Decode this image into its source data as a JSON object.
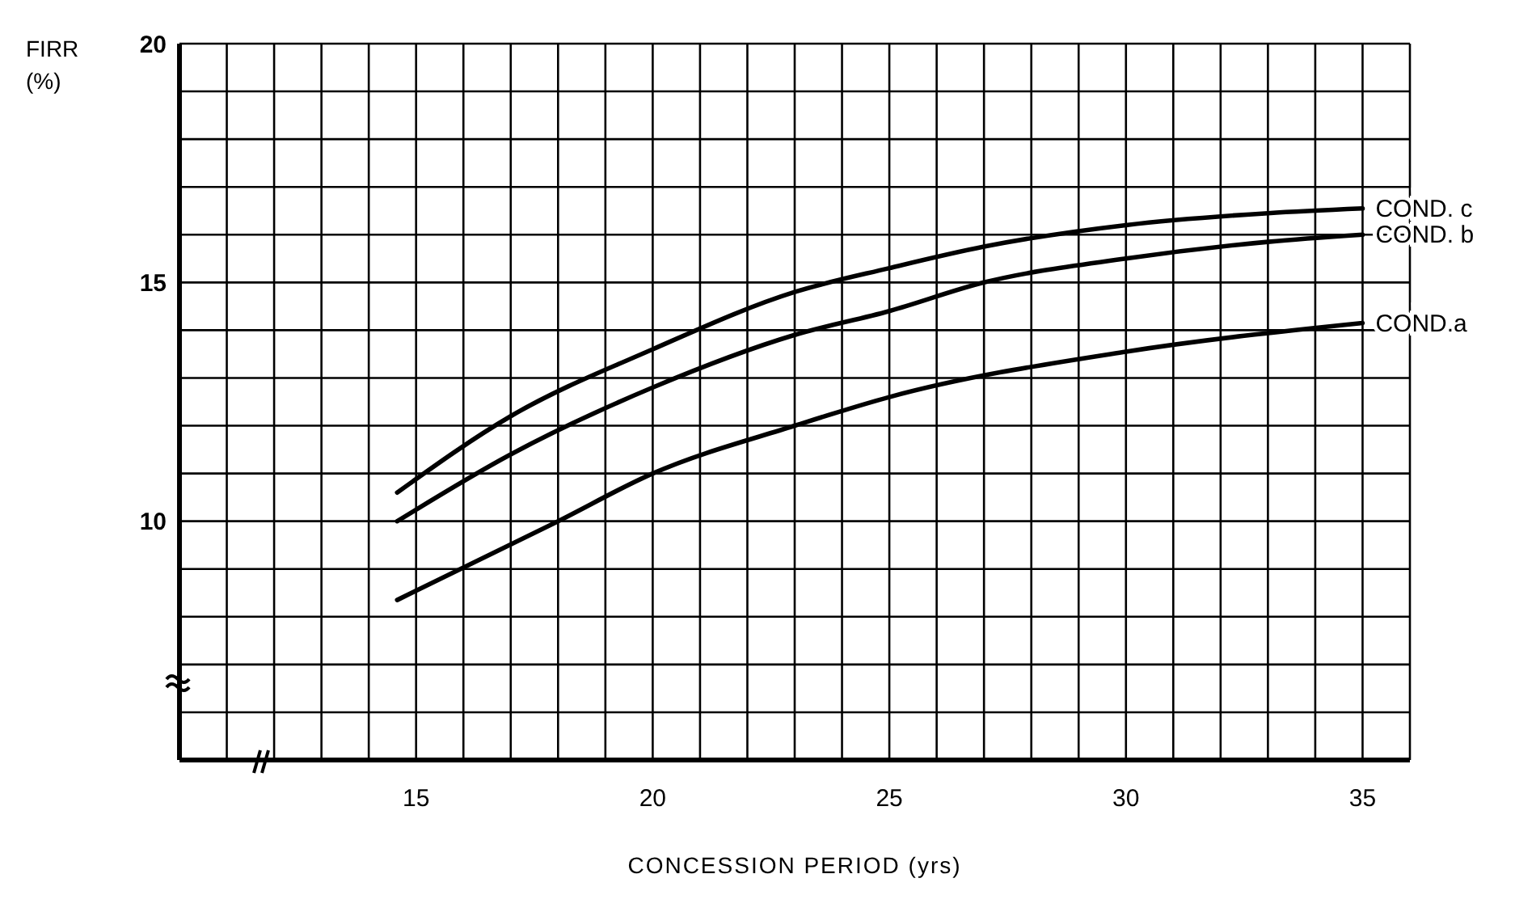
{
  "chart_data": {
    "type": "line",
    "xlabel": "CONCESSION PERIOD (yrs)",
    "ylabel": "FIRR (%)",
    "xlim": [
      10,
      36
    ],
    "ylim": [
      5,
      20
    ],
    "xticks": [
      {
        "value": 10,
        "label": null
      },
      {
        "value": 11,
        "label": null
      },
      {
        "value": 12,
        "label": null
      },
      {
        "value": 13,
        "label": null
      },
      {
        "value": 14,
        "label": null
      },
      15,
      {
        "value": 16,
        "label": null
      },
      {
        "value": 17,
        "label": null
      },
      {
        "value": 18,
        "label": null
      },
      {
        "value": 19,
        "label": null
      },
      20,
      {
        "value": 21,
        "label": null
      },
      {
        "value": 22,
        "label": null
      },
      {
        "value": 23,
        "label": null
      },
      {
        "value": 24,
        "label": null
      },
      25,
      {
        "value": 26,
        "label": null
      },
      {
        "value": 27,
        "label": null
      },
      {
        "value": 28,
        "label": null
      },
      {
        "value": 29,
        "label": null
      },
      30,
      {
        "value": 31,
        "label": null
      },
      {
        "value": 32,
        "label": null
      },
      {
        "value": 33,
        "label": null
      },
      {
        "value": 34,
        "label": null
      },
      35,
      {
        "value": 36,
        "label": null
      }
    ],
    "yticks": [
      {
        "value": 5,
        "label": null
      },
      {
        "value": 6,
        "label": null
      },
      {
        "value": 7,
        "label": null
      },
      {
        "value": 8,
        "label": null
      },
      {
        "value": 9,
        "label": null
      },
      10,
      {
        "value": 11,
        "label": null
      },
      {
        "value": 12,
        "label": null
      },
      {
        "value": 13,
        "label": null
      },
      {
        "value": 14,
        "label": null
      },
      15,
      {
        "value": 16,
        "label": null
      },
      {
        "value": 17,
        "label": null
      },
      {
        "value": 18,
        "label": null
      },
      {
        "value": 19,
        "label": null
      },
      20
    ],
    "grid": true,
    "legend": false,
    "marker": "none",
    "line_style": "solid",
    "series": [
      {
        "name": "COND. c",
        "color": "#000000",
        "x": [
          14.6,
          17,
          20,
          23,
          25,
          27,
          30,
          33,
          35
        ],
        "values": [
          10.6,
          12.2,
          13.6,
          14.8,
          15.3,
          15.75,
          16.2,
          16.45,
          16.55
        ]
      },
      {
        "name": "COND. b",
        "color": "#000000",
        "x": [
          14.6,
          17,
          20,
          23,
          25,
          27,
          30,
          33,
          35
        ],
        "values": [
          10.0,
          11.4,
          12.8,
          13.9,
          14.4,
          15.0,
          15.5,
          15.85,
          16.0
        ]
      },
      {
        "name": "COND.a",
        "color": "#000000",
        "x": [
          14.6,
          18,
          20,
          23,
          25,
          30,
          35
        ],
        "values": [
          8.35,
          10.0,
          11.0,
          12.0,
          12.6,
          13.55,
          14.15
        ]
      }
    ]
  }
}
